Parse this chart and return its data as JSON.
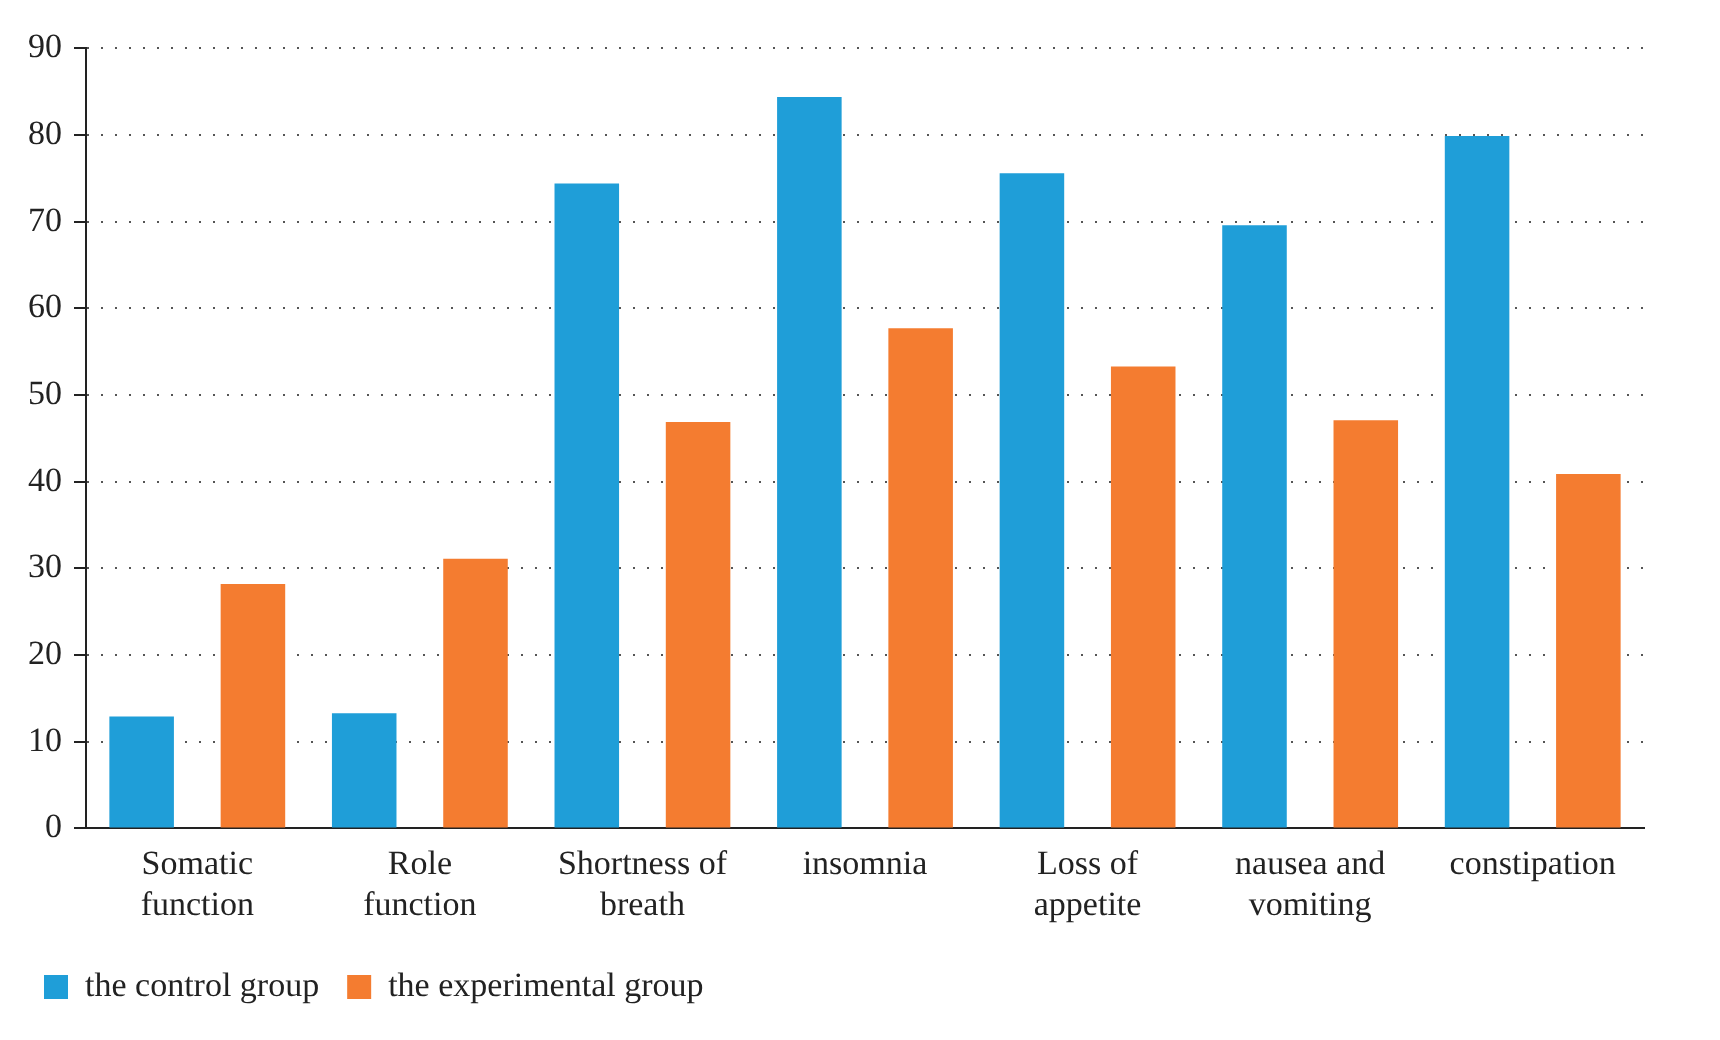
{
  "chart_data": {
    "type": "bar",
    "categories": [
      "Somatic function",
      "Role function",
      "Shortness of breath",
      "insomnia",
      "Loss of appetite",
      "nausea and vomiting",
      "constipation"
    ],
    "series": [
      {
        "name": "the control group",
        "color": "#1f9ed8",
        "values": [
          12.9,
          13.3,
          74.4,
          84.4,
          75.6,
          69.6,
          79.9
        ]
      },
      {
        "name": "the experimental group",
        "color": "#f47c30",
        "values": [
          28.2,
          31.1,
          46.9,
          57.7,
          53.3,
          47.1,
          40.9
        ]
      }
    ],
    "ylim": [
      0,
      90
    ],
    "yticks": [
      0,
      10,
      20,
      30,
      40,
      50,
      60,
      70,
      80,
      90
    ],
    "grid": "y",
    "legend": "bottom left"
  }
}
